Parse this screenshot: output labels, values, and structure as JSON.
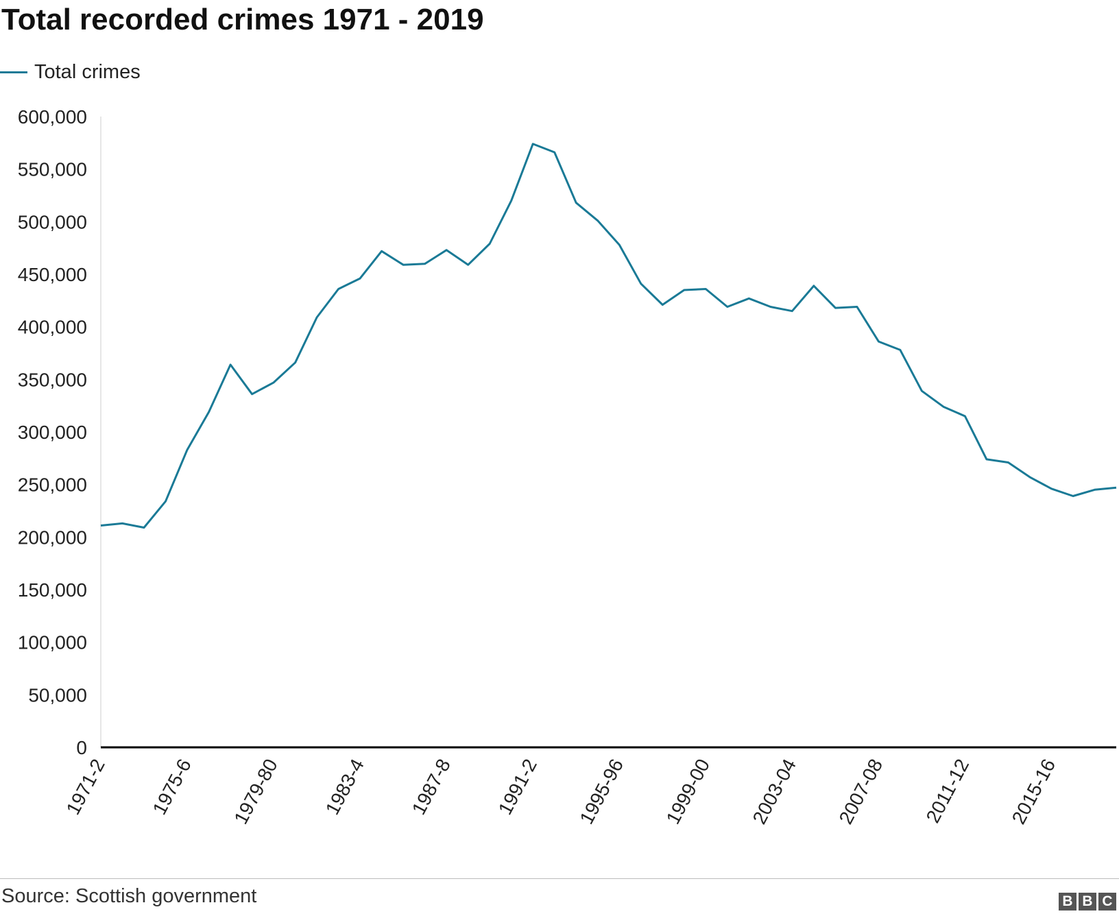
{
  "chart_data": {
    "type": "line",
    "title": "Total recorded crimes 1971 - 2019",
    "xlabel": "",
    "ylabel": "",
    "ylim": [
      0,
      600000
    ],
    "yticks": [
      0,
      50000,
      100000,
      150000,
      200000,
      250000,
      300000,
      350000,
      400000,
      450000,
      500000,
      550000,
      600000
    ],
    "ytick_labels": [
      "0",
      "50,000",
      "100,000",
      "150,000",
      "200,000",
      "250,000",
      "300,000",
      "350,000",
      "400,000",
      "450,000",
      "500,000",
      "550,000",
      "600,000"
    ],
    "x_tick_labels": [
      "1971-2",
      "1975-6",
      "1979-80",
      "1983-4",
      "1987-8",
      "1991-2",
      "1995-96",
      "1999-00",
      "2003-04",
      "2007-08",
      "2011-12",
      "2015-16"
    ],
    "x_tick_index": [
      0,
      4,
      8,
      12,
      16,
      20,
      24,
      28,
      32,
      36,
      40,
      44
    ],
    "grid": false,
    "legend_position": "top-left",
    "colors": {
      "series": "#1a7a96",
      "axis": "#000000"
    },
    "series": [
      {
        "name": "Total crimes",
        "values": [
          211000,
          213000,
          209000,
          234000,
          283000,
          319000,
          364000,
          336000,
          347000,
          366000,
          409000,
          436000,
          446000,
          472000,
          459000,
          460000,
          473000,
          459000,
          479000,
          520000,
          574000,
          566000,
          518000,
          501000,
          478000,
          441000,
          421000,
          435000,
          436000,
          419000,
          427000,
          419000,
          415000,
          439000,
          418000,
          419000,
          386000,
          378000,
          339000,
          324000,
          315000,
          274000,
          271000,
          257000,
          246000,
          239000,
          245000,
          247000
        ]
      }
    ]
  },
  "footer": {
    "source": "Source: Scottish government",
    "logo": [
      "B",
      "B",
      "C"
    ]
  }
}
